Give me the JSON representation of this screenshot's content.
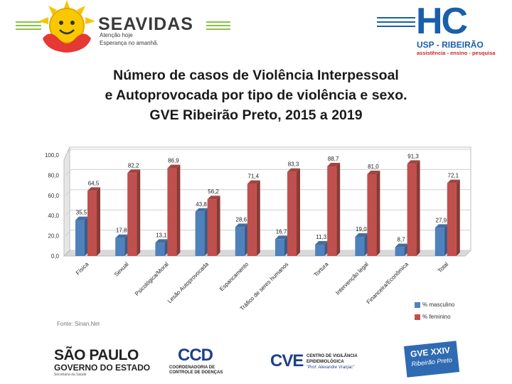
{
  "header": {
    "seavidas_name": "SEAVIDAS",
    "seavidas_tag_1": "Atenção hoje",
    "seavidas_tag_2": "Esperança no amanhã.",
    "usp_letters": "HC",
    "usp_name": "USP - RIBEIRÃO",
    "usp_tag": "assistência - ensino - pesquisa"
  },
  "title": {
    "line1": "Número de casos de Violência Interpessoal",
    "line2": "e Autoprovocada por tipo de violência e sexo.",
    "line3": "GVE Ribeirão Preto, 2015 a 2019"
  },
  "chart_data": {
    "type": "bar",
    "categories": [
      "Física",
      "Sexual",
      "Psicológica/Moral",
      "Lesão Autoprovocada",
      "Espancamento",
      "Tráfico de seres humanos",
      "Tortura",
      "Intervenção legal",
      "Financeira/Econômica",
      "Total"
    ],
    "series": [
      {
        "name": "% masculino",
        "color": "#4f81bd",
        "values": [
          35.5,
          17.8,
          13.1,
          43.8,
          28.6,
          16.7,
          11.3,
          19.0,
          8.7,
          27.9
        ],
        "labels": [
          "35,5",
          "17,8",
          "13,1",
          "43,8",
          "28,6",
          "16,7",
          "11,3",
          "19,0",
          "8,7",
          "27,9"
        ]
      },
      {
        "name": "% feminino",
        "color": "#c0504d",
        "values": [
          64.5,
          82.2,
          86.9,
          56.2,
          71.4,
          83.3,
          88.7,
          81.0,
          91.3,
          72.1
        ],
        "labels": [
          "64,5",
          "82,2",
          "86,9",
          "56,2",
          "71,4",
          "83,3",
          "88,7",
          "81,0",
          "91,3",
          "72,1"
        ]
      }
    ],
    "yticks": [
      0,
      20,
      40,
      60,
      80,
      100
    ],
    "ytick_labels": [
      "0,0",
      "20,0",
      "40,0",
      "60,0",
      "80,0",
      "100,0"
    ],
    "ylim": [
      0,
      100
    ],
    "legend_position": "bottom-right",
    "grid": true
  },
  "source": "Fonte: Sinan.Net",
  "footer": {
    "sp_line1": "SÃO PAULO",
    "sp_line2": "GOVERNO DO ESTADO",
    "sp_sub": "Secretaria da Saúde",
    "ccd_letters": "CCD",
    "ccd_line1": "COORDENADORIA DE",
    "ccd_line2": "CONTROLE DE DOENÇAS",
    "cve_letters": "CVE",
    "cve_line1": "CENTRO DE VIGILÂNCIA",
    "cve_line2": "EPIDEMIOLÓGICA",
    "cve_line3": "\"Prof. Alexandre Vranjac\"",
    "gve_line1": "GVE XXIV",
    "gve_line2": "Ribeirão Preto"
  }
}
